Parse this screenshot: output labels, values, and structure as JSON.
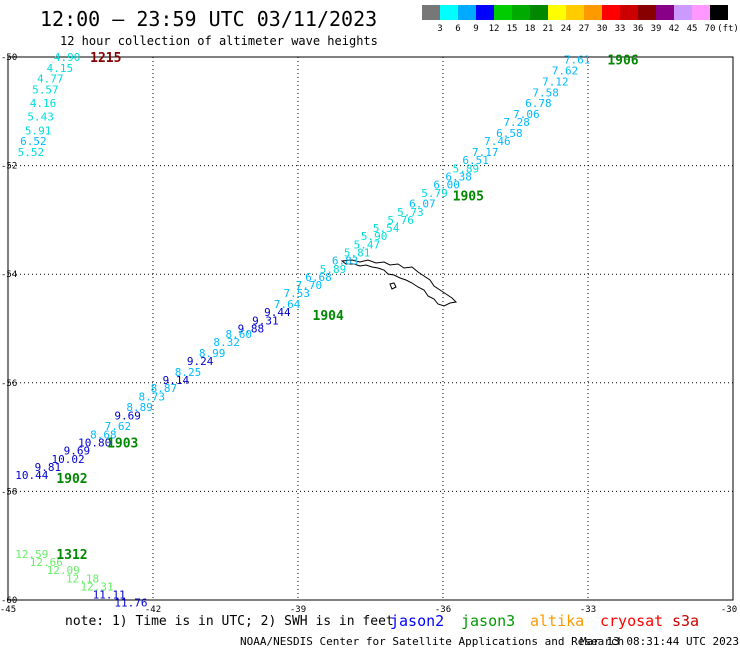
{
  "header": {
    "title": "12:00 – 23:59 UTC 03/11/2023",
    "subtitle": "12 hour collection of altimeter wave heights"
  },
  "legend": {
    "colors": [
      "#777777",
      "#00ffff",
      "#00aaff",
      "#0000ff",
      "#00cc00",
      "#00aa00",
      "#008800",
      "#ffff00",
      "#ffcc00",
      "#ff9900",
      "#ff0000",
      "#cc0000",
      "#880000",
      "#880088",
      "#cc99ff",
      "#ff99ff",
      "#000000"
    ],
    "labels": [
      "3",
      "6",
      "9",
      "12",
      "15",
      "18",
      "21",
      "24",
      "27",
      "30",
      "33",
      "36",
      "39",
      "42",
      "45",
      "70",
      "(ft)"
    ]
  },
  "axes": {
    "lon_ticks": [
      "-45",
      "-42",
      "-39",
      "-36",
      "-33",
      "-30"
    ],
    "lat_ticks": [
      "-50",
      "-52",
      "-54",
      "-56",
      "-58",
      "-60"
    ]
  },
  "tracks": [
    {
      "time": "1215",
      "color": "#880000",
      "lon": -43.3,
      "lat": -50.0
    },
    {
      "time": "1906",
      "color": "#008800",
      "lon": -32.6,
      "lat": -50.05
    },
    {
      "time": "1905",
      "color": "#008800",
      "lon": -35.8,
      "lat": -52.55
    },
    {
      "time": "1904",
      "color": "#008800",
      "lon": -38.7,
      "lat": -54.75
    },
    {
      "time": "1903",
      "color": "#008800",
      "lon": -42.95,
      "lat": -57.1
    },
    {
      "time": "1902",
      "color": "#008800",
      "lon": -44.0,
      "lat": -57.75
    },
    {
      "time": "1312",
      "color": "#008800",
      "lon": -44.0,
      "lat": -59.15
    }
  ],
  "swh": [
    {
      "v": "4.90",
      "c": "#00dddd",
      "lon": -44.05,
      "lat": -50.0
    },
    {
      "v": "4.15",
      "c": "#00dddd",
      "lon": -44.2,
      "lat": -50.2
    },
    {
      "v": "4.77",
      "c": "#00dddd",
      "lon": -44.4,
      "lat": -50.4
    },
    {
      "v": "5.57",
      "c": "#00dddd",
      "lon": -44.5,
      "lat": -50.6
    },
    {
      "v": "4.16",
      "c": "#00dddd",
      "lon": -44.55,
      "lat": -50.85
    },
    {
      "v": "5.43",
      "c": "#00dddd",
      "lon": -44.6,
      "lat": -51.1
    },
    {
      "v": "5.91",
      "c": "#00dddd",
      "lon": -44.65,
      "lat": -51.35
    },
    {
      "v": "6.52",
      "c": "#00bbff",
      "lon": -44.75,
      "lat": -51.55
    },
    {
      "v": "5.52",
      "c": "#00dddd",
      "lon": -44.8,
      "lat": -51.75
    },
    {
      "v": "7.61",
      "c": "#00bbff",
      "lon": -33.5,
      "lat": -50.05
    },
    {
      "v": "7.62",
      "c": "#00bbff",
      "lon": -33.75,
      "lat": -50.25
    },
    {
      "v": "7.12",
      "c": "#00bbff",
      "lon": -33.95,
      "lat": -50.45
    },
    {
      "v": "7.58",
      "c": "#00bbff",
      "lon": -34.15,
      "lat": -50.65
    },
    {
      "v": "6.78",
      "c": "#00bbff",
      "lon": -34.3,
      "lat": -50.85
    },
    {
      "v": "7.06",
      "c": "#00bbff",
      "lon": -34.55,
      "lat": -51.05
    },
    {
      "v": "7.28",
      "c": "#00bbff",
      "lon": -34.75,
      "lat": -51.2
    },
    {
      "v": "6.58",
      "c": "#00bbff",
      "lon": -34.9,
      "lat": -51.4
    },
    {
      "v": "7.46",
      "c": "#00bbff",
      "lon": -35.15,
      "lat": -51.55
    },
    {
      "v": "7.17",
      "c": "#00bbff",
      "lon": -35.4,
      "lat": -51.75
    },
    {
      "v": "6.51",
      "c": "#00bbff",
      "lon": -35.6,
      "lat": -51.9
    },
    {
      "v": "5.89",
      "c": "#00dddd",
      "lon": -35.8,
      "lat": -52.05
    },
    {
      "v": "6.38",
      "c": "#00bbff",
      "lon": -35.95,
      "lat": -52.2
    },
    {
      "v": "6.00",
      "c": "#00bbff",
      "lon": -36.2,
      "lat": -52.35
    },
    {
      "v": "5.79",
      "c": "#00dddd",
      "lon": -36.45,
      "lat": -52.5
    },
    {
      "v": "6.07",
      "c": "#00bbff",
      "lon": -36.7,
      "lat": -52.7
    },
    {
      "v": "5.73",
      "c": "#00dddd",
      "lon": -36.95,
      "lat": -52.85
    },
    {
      "v": "5.76",
      "c": "#00dddd",
      "lon": -37.15,
      "lat": -53.0
    },
    {
      "v": "5.54",
      "c": "#00dddd",
      "lon": -37.45,
      "lat": -53.15
    },
    {
      "v": "5.90",
      "c": "#00dddd",
      "lon": -37.7,
      "lat": -53.3
    },
    {
      "v": "5.47",
      "c": "#00dddd",
      "lon": -37.85,
      "lat": -53.45
    },
    {
      "v": "5.81",
      "c": "#00dddd",
      "lon": -38.05,
      "lat": -53.6
    },
    {
      "v": "6.83",
      "c": "#00bbff",
      "lon": -38.3,
      "lat": -53.75
    },
    {
      "v": "5.89",
      "c": "#00dddd",
      "lon": -38.55,
      "lat": -53.9
    },
    {
      "v": "6.68",
      "c": "#00bbff",
      "lon": -38.85,
      "lat": -54.05
    },
    {
      "v": "7.70",
      "c": "#00bbff",
      "lon": -39.05,
      "lat": -54.2
    },
    {
      "v": "7.53",
      "c": "#00bbff",
      "lon": -39.3,
      "lat": -54.35
    },
    {
      "v": "7.64",
      "c": "#00bbff",
      "lon": -39.5,
      "lat": -54.55
    },
    {
      "v": "9.44",
      "c": "#0000cc",
      "lon": -39.7,
      "lat": -54.7
    },
    {
      "v": "9.31",
      "c": "#0000cc",
      "lon": -39.95,
      "lat": -54.85
    },
    {
      "v": "9.88",
      "c": "#0000cc",
      "lon": -40.25,
      "lat": -55.0
    },
    {
      "v": "8.60",
      "c": "#00bbff",
      "lon": -40.5,
      "lat": -55.1
    },
    {
      "v": "8.32",
      "c": "#00bbff",
      "lon": -40.75,
      "lat": -55.25
    },
    {
      "v": "8.99",
      "c": "#00bbff",
      "lon": -41.05,
      "lat": -55.45
    },
    {
      "v": "9.24",
      "c": "#0000cc",
      "lon": -41.3,
      "lat": -55.6
    },
    {
      "v": "8.25",
      "c": "#00bbff",
      "lon": -41.55,
      "lat": -55.8
    },
    {
      "v": "9.14",
      "c": "#0000cc",
      "lon": -41.8,
      "lat": -55.95
    },
    {
      "v": "8.87",
      "c": "#00bbff",
      "lon": -42.05,
      "lat": -56.1
    },
    {
      "v": "8.73",
      "c": "#00bbff",
      "lon": -42.3,
      "lat": -56.25
    },
    {
      "v": "8.89",
      "c": "#00bbff",
      "lon": -42.55,
      "lat": -56.45
    },
    {
      "v": "9.69",
      "c": "#0000cc",
      "lon": -42.8,
      "lat": -56.6
    },
    {
      "v": "7.62",
      "c": "#00bbff",
      "lon": -43.0,
      "lat": -56.8
    },
    {
      "v": "8.68",
      "c": "#00bbff",
      "lon": -43.3,
      "lat": -56.95
    },
    {
      "v": "10.80",
      "c": "#0000cc",
      "lon": -43.55,
      "lat": -57.1
    },
    {
      "v": "9.69",
      "c": "#0000cc",
      "lon": -43.85,
      "lat": -57.25
    },
    {
      "v": "10.02",
      "c": "#0000cc",
      "lon": -44.1,
      "lat": -57.4
    },
    {
      "v": "9.81",
      "c": "#0000cc",
      "lon": -44.45,
      "lat": -57.55
    },
    {
      "v": "10.44",
      "c": "#0000cc",
      "lon": -44.85,
      "lat": -57.7
    },
    {
      "v": "12.59",
      "c": "#66ee66",
      "lon": -44.85,
      "lat": -59.15
    },
    {
      "v": "12.66",
      "c": "#66ee66",
      "lon": -44.55,
      "lat": -59.3
    },
    {
      "v": "12.09",
      "c": "#66ee66",
      "lon": -44.2,
      "lat": -59.45
    },
    {
      "v": "12.18",
      "c": "#66ee66",
      "lon": -43.8,
      "lat": -59.6
    },
    {
      "v": "12.31",
      "c": "#66ee66",
      "lon": -43.5,
      "lat": -59.75
    },
    {
      "v": "11.11",
      "c": "#0000cc",
      "lon": -43.25,
      "lat": -59.9
    },
    {
      "v": "11.76",
      "c": "#0000cc",
      "lon": -42.8,
      "lat": -60.05
    }
  ],
  "footer": {
    "note": "note: 1) Time is in UTC; 2) SWH is in feet",
    "satellites": [
      {
        "name": "jason2",
        "color": "#0000ff"
      },
      {
        "name": "jason3",
        "color": "#009900"
      },
      {
        "name": "altika",
        "color": "#ff9900"
      },
      {
        "name": "cryosat",
        "color": "#ff0000"
      },
      {
        "name": "s3a",
        "color": "#cc0000"
      }
    ],
    "credit": "NOAA/NESDIS Center for Satellite Applications and Research",
    "timestamp": "Mar 13 08:31:44 UTC 2023"
  }
}
